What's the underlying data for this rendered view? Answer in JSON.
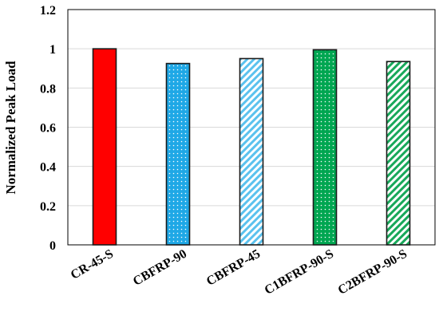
{
  "chart_data": {
    "type": "bar",
    "title": "",
    "xlabel": "",
    "ylabel": "Normalized Peak Load",
    "ylim": [
      0,
      1.2
    ],
    "yticks": [
      "0",
      "0.2",
      "0.4",
      "0.6",
      "0.8",
      "1",
      "1.2"
    ],
    "grid": true,
    "categories": [
      "CR-45-S",
      "CBFRP-90",
      "CBFRP-45",
      "C1BFRP-90-S",
      "C2BFRP-90-S"
    ],
    "values": [
      1.0,
      0.925,
      0.95,
      0.995,
      0.935
    ],
    "colors": [
      "#ff0000",
      "#1fa8e6",
      "#5bc2ee",
      "#00a651",
      "#18a85a"
    ],
    "patterns": [
      "solid",
      "dots",
      "diagonal-stripes",
      "dots",
      "diagonal-stripes"
    ]
  }
}
